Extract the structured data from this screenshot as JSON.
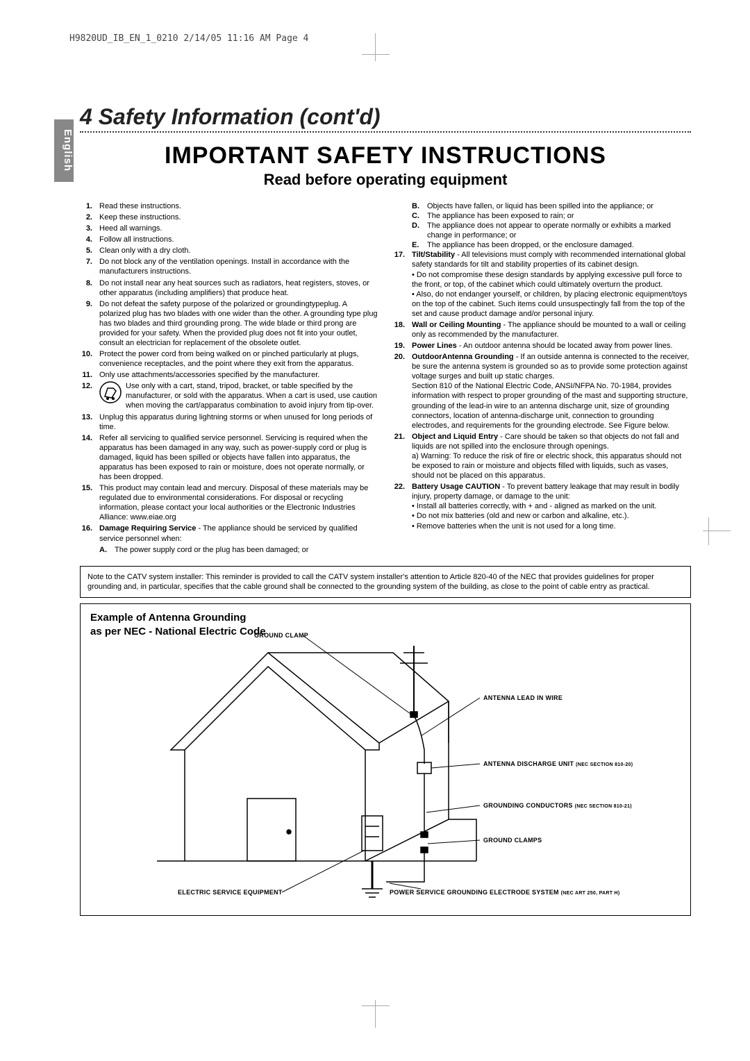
{
  "header": {
    "print_info": "H9820UD_IB_EN_1_0210  2/14/05  11:16 AM  Page 4"
  },
  "language_tab": "English",
  "section": {
    "number": "4",
    "title": "Safety Information (cont'd)"
  },
  "main_title": "IMPORTANT SAFETY INSTRUCTIONS",
  "subtitle": "Read before operating equipment",
  "left_items": [
    {
      "n": "1.",
      "t": "Read these instructions."
    },
    {
      "n": "2.",
      "t": "Keep these instructions."
    },
    {
      "n": "3.",
      "t": "Heed all warnings."
    },
    {
      "n": "4.",
      "t": "Follow all instructions."
    },
    {
      "n": "5.",
      "t": "Clean only with a dry cloth."
    },
    {
      "n": "7.",
      "t": "Do not block any of the ventilation openings. Install in accordance with the manufacturers instructions."
    },
    {
      "n": "8.",
      "t": "Do not install near any heat sources such as radiators, heat registers, stoves, or other apparatus (including amplifiers) that produce heat."
    },
    {
      "n": "9.",
      "t": "Do not defeat the safety purpose of the polarized or groundingtypeplug. A polarized plug has two blades with one wider than the other. A grounding type plug has two blades and third grounding prong. The wide blade or third prong are provided for your safety. When the provided plug does not fit into your outlet, consult an electrician for replacement of the obsolete outlet."
    },
    {
      "n": "10.",
      "t": "Protect the power cord from being walked on or pinched particularly at plugs, convenience receptacles, and the point where they exit from the apparatus."
    },
    {
      "n": "11.",
      "t": "Only use attachments/accessories specified by the manufacturer."
    },
    {
      "n": "12.",
      "t": "Use only with a cart, stand, tripod, bracket, or table specified by the manufacturer, or sold with the apparatus. When a cart is used, use caution when moving the cart/apparatus combination to avoid injury from tip-over.",
      "icon": true
    },
    {
      "n": "13.",
      "t": "Unplug this apparatus during lightning storms or when unused for long periods of time."
    },
    {
      "n": "14.",
      "t": "Refer all servicing to qualified service personnel. Servicing is required when the apparatus has been damaged in any way, such as power-supply cord or plug is damaged, liquid has been spilled or objects have fallen into apparatus, the apparatus has been exposed to rain or moisture, does not operate normally, or has been dropped."
    },
    {
      "n": "15.",
      "t": "This product may contain lead and mercury. Disposal of these materials may be regulated due to environmental considerations. For disposal or recycling information, please contact your local authorities or the Electronic Industries Alliance: www.eiae.org"
    },
    {
      "n": "16.",
      "bold": "Damage Requiring Service",
      "t": " - The appliance should be serviced by qualified service personnel when:"
    }
  ],
  "item16_sub": {
    "letter": "A.",
    "text": "The power supply cord or the plug has been damaged; or"
  },
  "right_subs": [
    {
      "l": "B.",
      "t": "Objects have fallen, or liquid has been spilled into the appliance; or"
    },
    {
      "l": "C.",
      "t": "The appliance has been exposed to rain; or"
    },
    {
      "l": "D.",
      "t": "The appliance does not appear to operate normally or exhibits a marked change in performance; or"
    },
    {
      "l": "E.",
      "t": "The appliance has been dropped, or the enclosure damaged."
    }
  ],
  "right_items": [
    {
      "n": "17.",
      "bold": "Tilt/Stability",
      "t": " - All televisions must comply with recommended international global safety standards for tilt and stability properties of its cabinet design.\n• Do not compromise these design standards by applying excessive pull force to the front, or top, of the cabinet which could ultimately overturn the product.\n• Also, do not endanger yourself, or children, by placing electronic equipment/toys on the top of the cabinet. Such items could unsuspectingly fall from the top of the set and cause product damage and/or personal injury."
    },
    {
      "n": "18.",
      "bold": "Wall or Ceiling Mounting",
      "t": " - The appliance should be mounted to a wall or ceiling only as recommended by the manufacturer."
    },
    {
      "n": "19.",
      "bold": "Power Lines",
      "t": " - An outdoor antenna should be located away from power lines."
    },
    {
      "n": "20.",
      "bold": "OutdoorAntenna Grounding",
      "t": " - If an outside antenna is connected to the receiver, be sure the antenna system is grounded so as to provide some protection against voltage surges and built up static charges.\nSection 810 of the National Electric Code, ANSI/NFPA No. 70-1984, provides information with respect to proper grounding of the mast and supporting structure, grounding of the lead-in wire to an antenna discharge unit, size of grounding connectors, location of antenna-discharge unit, connection to grounding electrodes, and requirements for the grounding electrode. See Figure below."
    },
    {
      "n": "21.",
      "bold": "Object and Liquid Entry",
      "t": " - Care should be taken so that objects do not fall and liquids are not spilled into the enclosure through openings.\na) Warning: To reduce the risk of fire or electric shock, this apparatus should not be exposed to rain or moisture and objects filled with liquids, such as vases, should not be placed on this apparatus."
    },
    {
      "n": "22.",
      "bold": "Battery Usage CAUTION",
      "t": " - To prevent battery leakage that may result in bodily injury, property damage, or damage to the unit:\n• Install all batteries correctly, with + and - aligned as marked on the unit.\n• Do not mix batteries (old and new or carbon and alkaline, etc.).\n• Remove batteries when the unit is not used for a long time."
    }
  ],
  "note": "Note to the CATV system installer: This reminder is provided to call the CATV system installer's attention to Article 820-40 of the NEC that provides guidelines for proper grounding and, in particular, specifies that the cable ground shall be connected to the grounding system of the building, as close to the point of cable entry as practical.",
  "diagram": {
    "title_line1": "Example of Antenna Grounding",
    "title_line2": "as per NEC - National Electric Code",
    "labels": {
      "ground_clamp": "GROUND CLAMP",
      "antenna_lead": "ANTENNA LEAD IN WIRE",
      "discharge_unit": "ANTENNA DISCHARGE UNIT",
      "discharge_unit_sec": "(NEC SECTION 810-20)",
      "grounding_conductors": "GROUNDING CONDUCTORS",
      "grounding_conductors_sec": "(NEC SECTION 810-21)",
      "ground_clamps": "GROUND CLAMPS",
      "electric_service": "ELECTRIC SERVICE EQUIPMENT",
      "power_service": "POWER SERVICE GROUNDING ELECTRODE SYSTEM",
      "power_service_sec": "(NEC ART 250, PART H)"
    },
    "colors": {
      "stroke": "#000000",
      "bg": "#ffffff"
    }
  }
}
